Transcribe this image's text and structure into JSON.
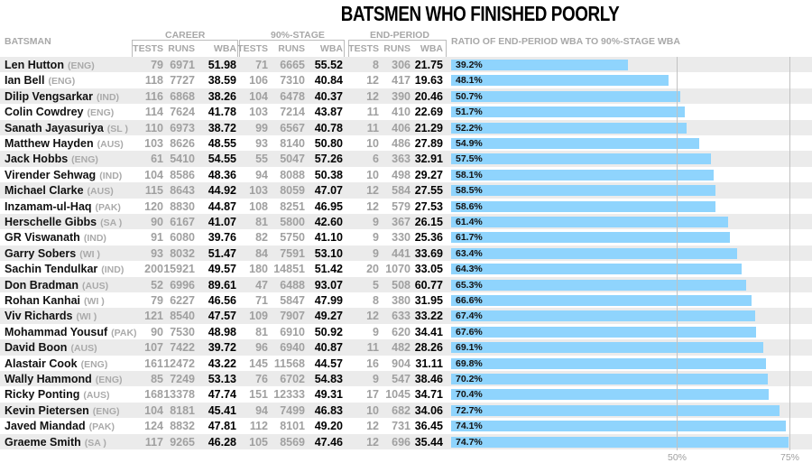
{
  "title": "BATSMEN WHO FINISHED POORLY",
  "headers": {
    "batsman": "BATSMAN",
    "career": "CAREER",
    "stage90": "90%-STAGE",
    "end": "END-PERIOD",
    "tests": "TESTS",
    "runs": "RUNS",
    "wba": "WBA",
    "ratio": "RATIO OF END-PERIOD WBA TO 90%-STAGE WBA"
  },
  "chart_data": {
    "type": "bar",
    "title": "RATIO OF END-PERIOD WBA TO 90%-STAGE WBA",
    "xlim": [
      0,
      80
    ],
    "ticks": [
      "50%",
      "75%"
    ],
    "tick_values": [
      50,
      75
    ],
    "rows": [
      [
        "Len Hutton",
        "(ENG)",
        79,
        6971,
        "51.98",
        71,
        6665,
        "55.52",
        8,
        306,
        "21.75",
        39.2
      ],
      [
        "Ian Bell",
        "(ENG)",
        118,
        7727,
        "38.59",
        106,
        7310,
        "40.84",
        12,
        417,
        "19.63",
        48.1
      ],
      [
        "Dilip Vengsarkar",
        "(IND)",
        116,
        6868,
        "38.26",
        104,
        6478,
        "40.37",
        12,
        390,
        "20.46",
        50.7
      ],
      [
        "Colin Cowdrey",
        "(ENG)",
        114,
        7624,
        "41.78",
        103,
        7214,
        "43.87",
        11,
        410,
        "22.69",
        51.7
      ],
      [
        "Sanath Jayasuriya",
        "(SL )",
        110,
        6973,
        "38.72",
        99,
        6567,
        "40.78",
        11,
        406,
        "21.29",
        52.2
      ],
      [
        "Matthew Hayden",
        "(AUS)",
        103,
        8626,
        "48.55",
        93,
        8140,
        "50.80",
        10,
        486,
        "27.89",
        54.9
      ],
      [
        "Jack Hobbs",
        "(ENG)",
        61,
        5410,
        "54.55",
        55,
        5047,
        "57.26",
        6,
        363,
        "32.91",
        57.5
      ],
      [
        "Virender Sehwag",
        "(IND)",
        104,
        8586,
        "48.36",
        94,
        8088,
        "50.38",
        10,
        498,
        "29.27",
        58.1
      ],
      [
        "Michael Clarke",
        "(AUS)",
        115,
        8643,
        "44.92",
        103,
        8059,
        "47.07",
        12,
        584,
        "27.55",
        58.5
      ],
      [
        "Inzamam-ul-Haq",
        "(PAK)",
        120,
        8830,
        "44.87",
        108,
        8251,
        "46.95",
        12,
        579,
        "27.53",
        58.6
      ],
      [
        "Herschelle Gibbs",
        "(SA )",
        90,
        6167,
        "41.07",
        81,
        5800,
        "42.60",
        9,
        367,
        "26.15",
        61.4
      ],
      [
        "GR Viswanath",
        "(IND)",
        91,
        6080,
        "39.76",
        82,
        5750,
        "41.10",
        9,
        330,
        "25.36",
        61.7
      ],
      [
        "Garry Sobers",
        "(WI )",
        93,
        8032,
        "51.47",
        84,
        7591,
        "53.10",
        9,
        441,
        "33.69",
        63.4
      ],
      [
        "Sachin Tendulkar",
        "(IND)",
        200,
        15921,
        "49.57",
        180,
        14851,
        "51.42",
        20,
        1070,
        "33.05",
        64.3
      ],
      [
        "Don Bradman",
        "(AUS)",
        52,
        6996,
        "89.61",
        47,
        6488,
        "93.07",
        5,
        508,
        "60.77",
        65.3
      ],
      [
        "Rohan Kanhai",
        "(WI )",
        79,
        6227,
        "46.56",
        71,
        5847,
        "47.99",
        8,
        380,
        "31.95",
        66.6
      ],
      [
        "Viv Richards",
        "(WI )",
        121,
        8540,
        "47.57",
        109,
        7907,
        "49.27",
        12,
        633,
        "33.22",
        67.4
      ],
      [
        "Mohammad Yousuf",
        "(PAK)",
        90,
        7530,
        "48.98",
        81,
        6910,
        "50.92",
        9,
        620,
        "34.41",
        67.6
      ],
      [
        "David Boon",
        "(AUS)",
        107,
        7422,
        "39.72",
        96,
        6940,
        "40.87",
        11,
        482,
        "28.26",
        69.1
      ],
      [
        "Alastair Cook",
        "(ENG)",
        161,
        12472,
        "43.22",
        145,
        11568,
        "44.57",
        16,
        904,
        "31.11",
        69.8
      ],
      [
        "Wally Hammond",
        "(ENG)",
        85,
        7249,
        "53.13",
        76,
        6702,
        "54.83",
        9,
        547,
        "38.46",
        70.2
      ],
      [
        "Ricky Ponting",
        "(AUS)",
        168,
        13378,
        "47.74",
        151,
        12333,
        "49.31",
        17,
        1045,
        "34.71",
        70.4
      ],
      [
        "Kevin Pietersen",
        "(ENG)",
        104,
        8181,
        "45.41",
        94,
        7499,
        "46.83",
        10,
        682,
        "34.06",
        72.7
      ],
      [
        "Javed Miandad",
        "(PAK)",
        124,
        8832,
        "47.81",
        112,
        8101,
        "49.20",
        12,
        731,
        "36.45",
        74.1
      ],
      [
        "Graeme Smith",
        "(SA )",
        117,
        9265,
        "46.28",
        105,
        8569,
        "47.46",
        12,
        696,
        "35.44",
        74.7
      ]
    ]
  }
}
